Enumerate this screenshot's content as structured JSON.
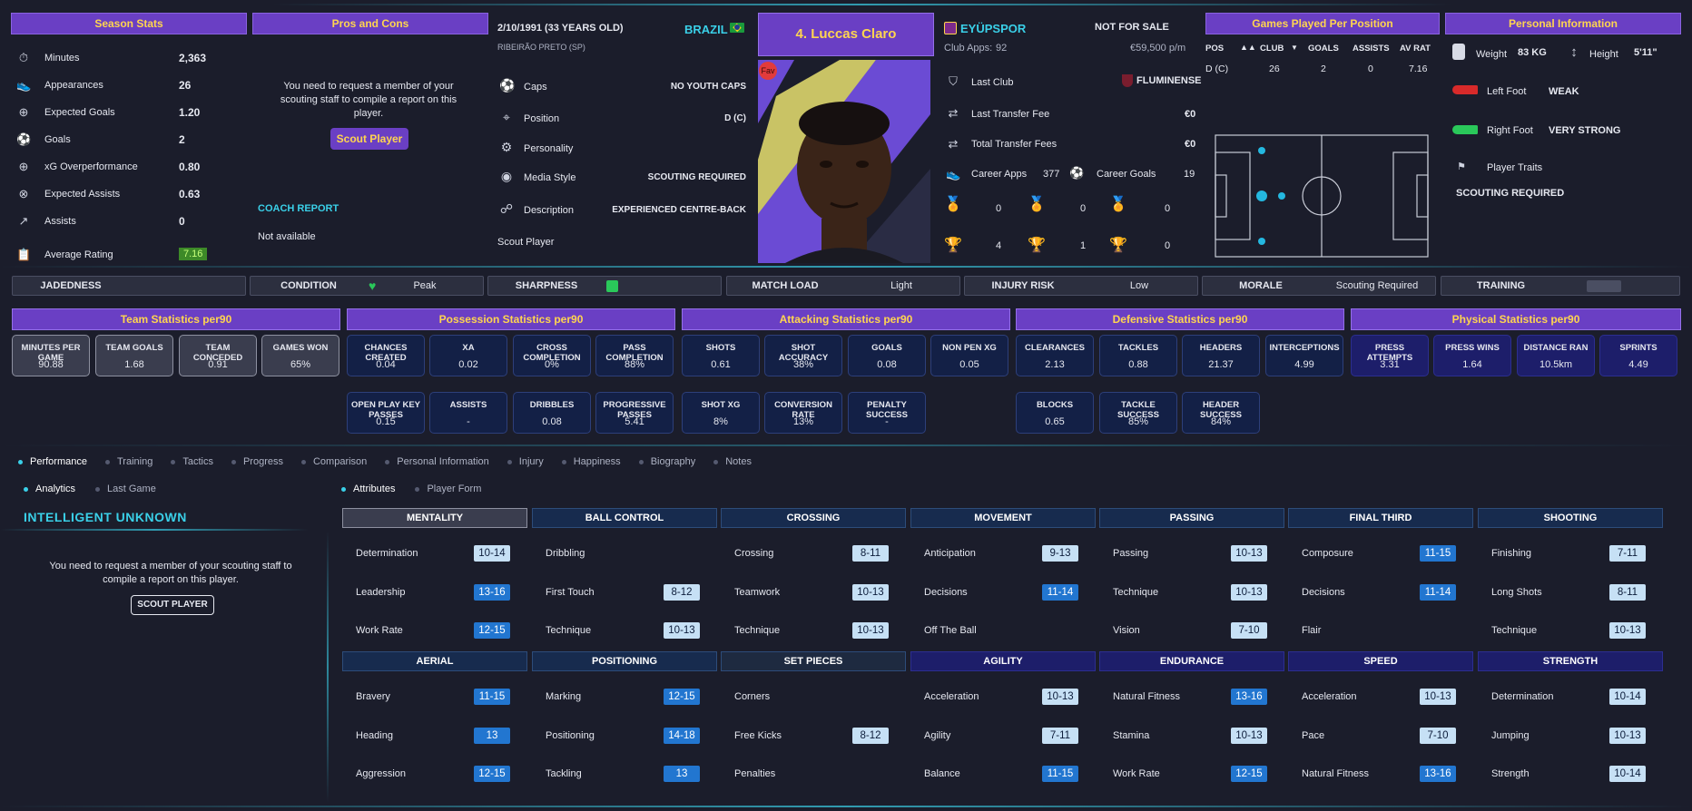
{
  "season": {
    "title": "Season Stats",
    "rows": [
      {
        "icon": "stopwatch-icon",
        "label": "Minutes",
        "value": "2,363"
      },
      {
        "icon": "boot-icon",
        "label": "Appearances",
        "value": "26"
      },
      {
        "icon": "xg-icon",
        "label": "Expected Goals",
        "value": "1.20"
      },
      {
        "icon": "ball-icon",
        "label": "Goals",
        "value": "2"
      },
      {
        "icon": "xg-icon",
        "label": "xG Overperformance",
        "value": "0.80"
      },
      {
        "icon": "xa-icon",
        "label": "Expected Assists",
        "value": "0.63"
      },
      {
        "icon": "assist-icon",
        "label": "Assists",
        "value": "0"
      },
      {
        "icon": "clipboard-icon",
        "label": "Average Rating",
        "value": "7.16"
      }
    ]
  },
  "pros": {
    "title": "Pros and Cons",
    "message": "You need to request a member of your scouting staff to compile a report on this player.",
    "button": "Scout Player",
    "coach_title": "COACH REPORT",
    "coach_value": "Not available"
  },
  "bio": {
    "dob": "2/10/1991 (33 YEARS OLD)",
    "nation": "BRAZIL",
    "birthplace": "RIBEIRÃO PRETO (SP)",
    "rows": [
      {
        "icon": "caps-icon",
        "label": "Caps",
        "value": "NO YOUTH CAPS"
      },
      {
        "icon": "position-icon",
        "label": "Position",
        "value": "D (C)"
      },
      {
        "icon": "personality-icon",
        "label": "Personality",
        "value": ""
      },
      {
        "icon": "media-icon",
        "label": "Media Style",
        "value": "SCOUTING REQUIRED"
      },
      {
        "icon": "description-icon",
        "label": "Description",
        "value": "EXPERIENCED CENTRE-BACK"
      }
    ],
    "scout_link": "Scout Player"
  },
  "player": {
    "name": "4. Luccas Claro",
    "badge": "Fav"
  },
  "club": {
    "name": "EYÜPSPOR",
    "status": "NOT FOR SALE",
    "apps_label": "Club Apps:",
    "apps": "92",
    "wage": "€59,500 p/m",
    "last_club_label": "Last Club",
    "last_club": "FLUMINENSE",
    "last_fee_label": "Last Transfer Fee",
    "last_fee": "€0",
    "total_fee_label": "Total Transfer Fees",
    "total_fee": "€0",
    "career_apps_label": "Career Apps",
    "career_apps": "377",
    "career_goals_label": "Career Goals",
    "career_goals": "19",
    "medals": [
      "0",
      "0",
      "0"
    ],
    "trophies": [
      "4",
      "1",
      "0"
    ]
  },
  "games_pos": {
    "title": "Games Played Per Position",
    "headers": [
      "POS",
      "CLUB",
      "GOALS",
      "ASSISTS",
      "AV RAT"
    ],
    "row": [
      "D (C)",
      "26",
      "2",
      "0",
      "7.16"
    ]
  },
  "personal": {
    "title": "Personal Information",
    "weight_label": "Weight",
    "weight": "83 KG",
    "height_label": "Height",
    "height": "5'11\"",
    "left_label": "Left Foot",
    "left": "WEAK",
    "right_label": "Right Foot",
    "right": "VERY STRONG",
    "traits_label": "Player Traits",
    "traits": "SCOUTING REQUIRED"
  },
  "status": [
    {
      "label": "JADEDNESS",
      "value": ""
    },
    {
      "label": "CONDITION",
      "value": "Peak"
    },
    {
      "label": "SHARPNESS",
      "value": ""
    },
    {
      "label": "MATCH LOAD",
      "value": "Light"
    },
    {
      "label": "INJURY RISK",
      "value": "Low"
    },
    {
      "label": "MORALE",
      "value": "Scouting Required"
    },
    {
      "label": "TRAINING",
      "value": "-"
    }
  ],
  "sections": [
    "Team Statistics per90",
    "Possession Statistics per90",
    "Attacking Statistics per90",
    "Defensive Statistics per90",
    "Physical Statistics per90"
  ],
  "stats_row1": [
    {
      "t": "MINUTES PER GAME",
      "v": "90.88"
    },
    {
      "t": "TEAM GOALS",
      "v": "1.68"
    },
    {
      "t": "TEAM CONCEDED",
      "v": "0.91"
    },
    {
      "t": "GAMES WON",
      "v": "65%"
    },
    {
      "t": "CHANCES CREATED",
      "v": "0.04"
    },
    {
      "t": "XA",
      "v": "0.02"
    },
    {
      "t": "CROSS COMPLETION",
      "v": "0%"
    },
    {
      "t": "PASS COMPLETION",
      "v": "88%"
    },
    {
      "t": "SHOTS",
      "v": "0.61"
    },
    {
      "t": "SHOT ACCURACY",
      "v": "38%"
    },
    {
      "t": "GOALS",
      "v": "0.08"
    },
    {
      "t": "NON PEN XG",
      "v": "0.05"
    },
    {
      "t": "CLEARANCES",
      "v": "2.13"
    },
    {
      "t": "TACKLES",
      "v": "0.88"
    },
    {
      "t": "HEADERS",
      "v": "21.37"
    },
    {
      "t": "INTERCEPTIONS",
      "v": "4.99"
    },
    {
      "t": "PRESS ATTEMPTS",
      "v": "3.31"
    },
    {
      "t": "PRESS WINS",
      "v": "1.64"
    },
    {
      "t": "DISTANCE RAN",
      "v": "10.5km"
    },
    {
      "t": "SPRINTS",
      "v": "4.49"
    }
  ],
  "stats_row2": [
    {
      "t": "OPEN PLAY KEY PASSES",
      "v": "0.15"
    },
    {
      "t": "ASSISTS",
      "v": "-"
    },
    {
      "t": "DRIBBLES",
      "v": "0.08"
    },
    {
      "t": "PROGRESSIVE PASSES",
      "v": "5.41"
    },
    {
      "t": "SHOT XG",
      "v": "8%"
    },
    {
      "t": "CONVERSION RATE",
      "v": "13%"
    },
    {
      "t": "PENALTY SUCCESS",
      "v": "-"
    },
    {
      "t": "BLOCKS",
      "v": "0.65"
    },
    {
      "t": "TACKLE SUCCESS",
      "v": "85%"
    },
    {
      "t": "HEADER SUCCESS",
      "v": "84%"
    }
  ],
  "tabs": [
    "Performance",
    "Training",
    "Tactics",
    "Progress",
    "Comparison",
    "Personal Information",
    "Injury",
    "Happiness",
    "Biography",
    "Notes"
  ],
  "subtabs_left": [
    "Analytics",
    "Last Game"
  ],
  "subtabs_right": [
    "Attributes",
    "Player Form"
  ],
  "analytics": {
    "title": "INTELLIGENT UNKNOWN",
    "message": "You need to request a member of your scouting staff to compile a report on this player.",
    "button": "SCOUT PLAYER"
  },
  "attr_groups_top": [
    {
      "h": "MENTALITY",
      "items": [
        [
          "Determination",
          "10-14",
          "l"
        ],
        [
          "Leadership",
          "13-16",
          "d"
        ],
        [
          "Work Rate",
          "12-15",
          "d"
        ]
      ]
    },
    {
      "h": "BALL CONTROL",
      "items": [
        [
          "Dribbling",
          "",
          ""
        ],
        [
          "First Touch",
          "8-12",
          "l"
        ],
        [
          "Technique",
          "10-13",
          "l"
        ]
      ]
    },
    {
      "h": "CROSSING",
      "items": [
        [
          "Crossing",
          "8-11",
          "l"
        ],
        [
          "Teamwork",
          "10-13",
          "l"
        ],
        [
          "Technique",
          "10-13",
          "l"
        ]
      ]
    },
    {
      "h": "MOVEMENT",
      "items": [
        [
          "Anticipation",
          "9-13",
          "l"
        ],
        [
          "Decisions",
          "11-14",
          "d"
        ],
        [
          "Off The Ball",
          "",
          ""
        ]
      ]
    },
    {
      "h": "PASSING",
      "items": [
        [
          "Passing",
          "10-13",
          "l"
        ],
        [
          "Technique",
          "10-13",
          "l"
        ],
        [
          "Vision",
          "7-10",
          "l"
        ]
      ]
    },
    {
      "h": "FINAL THIRD",
      "items": [
        [
          "Composure",
          "11-15",
          "d"
        ],
        [
          "Decisions",
          "11-14",
          "d"
        ],
        [
          "Flair",
          "",
          ""
        ]
      ]
    },
    {
      "h": "SHOOTING",
      "items": [
        [
          "Finishing",
          "7-11",
          "l"
        ],
        [
          "Long Shots",
          "8-11",
          "l"
        ],
        [
          "Technique",
          "10-13",
          "l"
        ]
      ]
    }
  ],
  "attr_groups_bottom": [
    {
      "h": "AERIAL",
      "items": [
        [
          "Bravery",
          "11-15",
          "d"
        ],
        [
          "Heading",
          "13",
          "d"
        ],
        [
          "Aggression",
          "12-15",
          "d"
        ]
      ]
    },
    {
      "h": "POSITIONING",
      "items": [
        [
          "Marking",
          "12-15",
          "d"
        ],
        [
          "Positioning",
          "14-18",
          "d"
        ],
        [
          "Tackling",
          "13",
          "d"
        ]
      ]
    },
    {
      "h": "SET PIECES",
      "items": [
        [
          "Corners",
          "",
          ""
        ],
        [
          "Free Kicks",
          "8-12",
          "l"
        ],
        [
          "Penalties",
          "",
          ""
        ]
      ]
    },
    {
      "h": "AGILITY",
      "items": [
        [
          "Acceleration",
          "10-13",
          "l"
        ],
        [
          "Agility",
          "7-11",
          "l"
        ],
        [
          "Balance",
          "11-15",
          "d"
        ]
      ]
    },
    {
      "h": "ENDURANCE",
      "items": [
        [
          "Natural Fitness",
          "13-16",
          "d"
        ],
        [
          "Stamina",
          "10-13",
          "l"
        ],
        [
          "Work Rate",
          "12-15",
          "d"
        ]
      ]
    },
    {
      "h": "SPEED",
      "items": [
        [
          "Acceleration",
          "10-13",
          "l"
        ],
        [
          "Pace",
          "7-10",
          "l"
        ],
        [
          "Natural Fitness",
          "13-16",
          "d"
        ]
      ]
    },
    {
      "h": "STRENGTH",
      "items": [
        [
          "Determination",
          "10-14",
          "l"
        ],
        [
          "Jumping",
          "10-13",
          "l"
        ],
        [
          "Strength",
          "10-14",
          "l"
        ]
      ]
    }
  ],
  "colors": {
    "accent": "#6a3fc4",
    "header_text": "#ffd54f",
    "cyan": "#3ad0e8",
    "dark_pill": "#2276d0",
    "light_pill": "#c6e0f5"
  }
}
